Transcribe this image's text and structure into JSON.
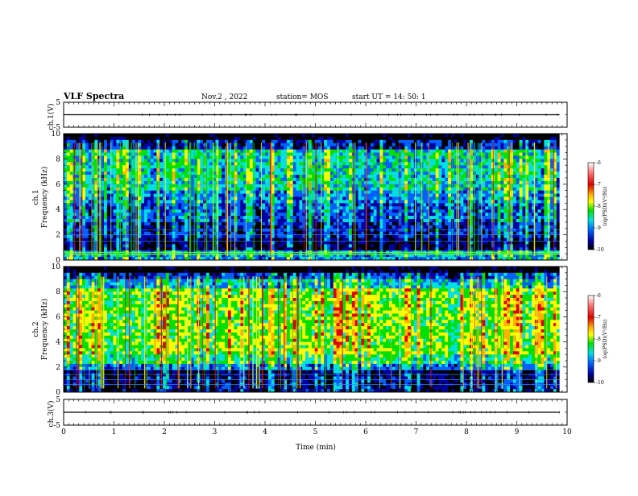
{
  "header": {
    "title": "VLF Spectra",
    "date": "Nov.2 , 2022",
    "station": "station= MOS",
    "start": "start UT = 14: 50: 1"
  },
  "colorbar": {
    "label": "log(PSD)(V²/Hz)",
    "ticks": [
      "-6",
      "-7",
      "-8",
      "-9",
      "-10"
    ],
    "colors": [
      "#ffffff",
      "#ff6d6d",
      "#e00000",
      "#ffb000",
      "#ffff00",
      "#00e000",
      "#00e0e0",
      "#0060ff",
      "#0000a0",
      "#000000"
    ]
  },
  "chart_data": [
    {
      "type": "line",
      "panel": "ch1-waveform",
      "ylabel": "ch.1(V)",
      "ylim": [
        -5,
        5
      ],
      "yticks": [
        "5",
        "-5"
      ],
      "xlim": [
        0,
        10
      ]
    },
    {
      "type": "heatmap",
      "panel": "ch1-spectrogram",
      "ylabel": "ch.1",
      "ylabel2": "Frequency (kHz)",
      "ylim": [
        0,
        10
      ],
      "yticks": [
        "10",
        "8",
        "6",
        "4",
        "2",
        "0"
      ],
      "xlim": [
        0,
        10
      ],
      "zlim": [
        -10,
        -6
      ]
    },
    {
      "type": "heatmap",
      "panel": "ch2-spectrogram",
      "ylabel": "ch.2",
      "ylabel2": "Frequency (kHz)",
      "ylim": [
        0,
        10
      ],
      "yticks": [
        "10",
        "8",
        "6",
        "4",
        "2",
        "0"
      ],
      "xlim": [
        0,
        10
      ],
      "zlim": [
        -10,
        -6
      ]
    },
    {
      "type": "line",
      "panel": "ch3-waveform",
      "ylabel": "ch.3(V)",
      "ylim": [
        -5,
        5
      ],
      "yticks": [
        "5",
        "-5"
      ],
      "xlim": [
        0,
        10
      ],
      "xlabel": "Time (min)",
      "xticks": [
        "0",
        "1",
        "2",
        "3",
        "4",
        "5",
        "6",
        "7",
        "8",
        "9",
        "10"
      ]
    }
  ]
}
